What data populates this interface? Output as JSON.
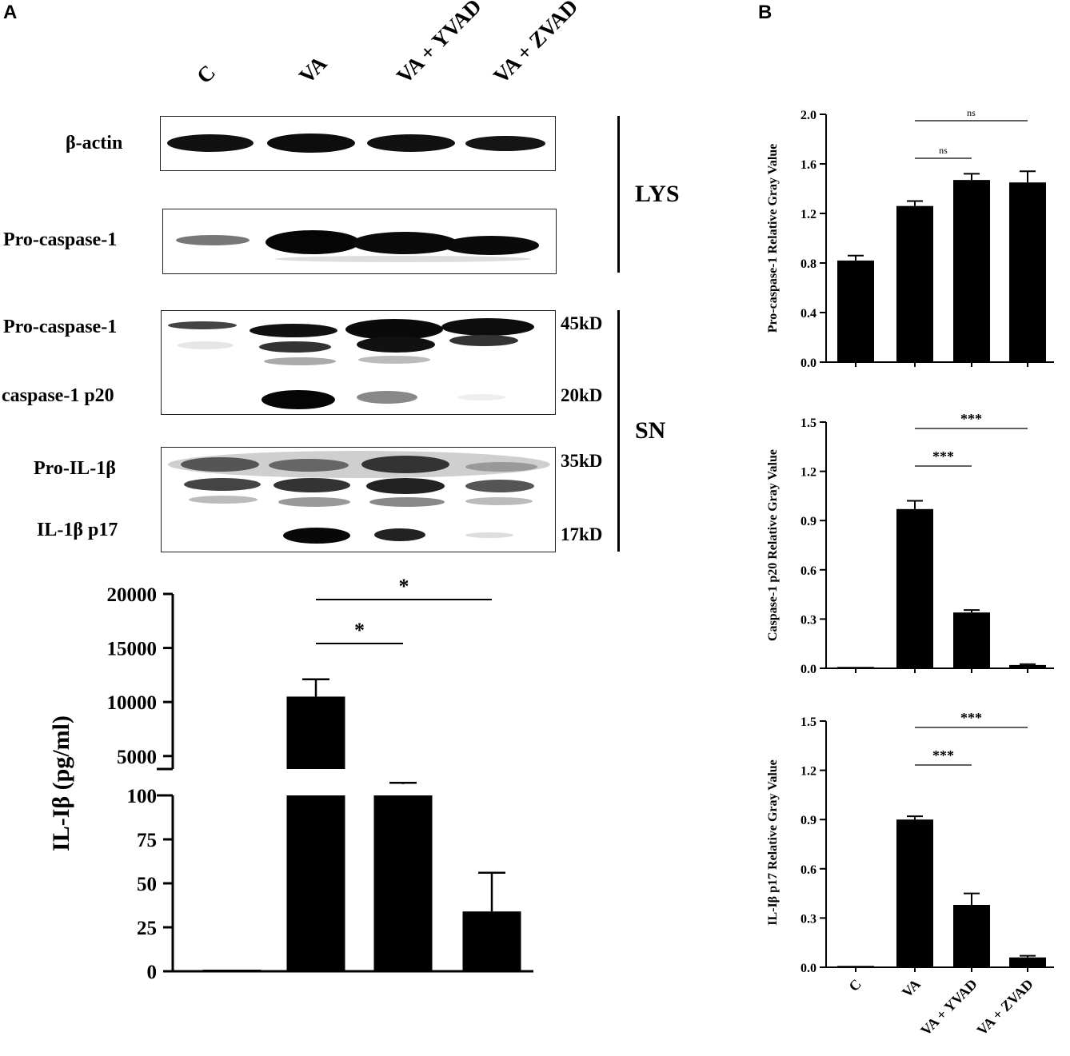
{
  "panel_a": {
    "letter": "A",
    "lanes": [
      "C",
      "VA",
      "VA + YVAD",
      "VA + ZVAD"
    ],
    "blots": {
      "beta_actin": "β-actin",
      "lys_pro_caspase": "Pro-caspase-1",
      "sn_pro_caspase": "Pro-caspase-1",
      "caspase_p20": "caspase-1 p20",
      "pro_il1b": "Pro-IL-1β",
      "il1b_p17": "IL-1β p17"
    },
    "markers": [
      "45kD",
      "20kD",
      "35kD",
      "17kD"
    ],
    "groups": {
      "lys": "LYS",
      "sn": "SN"
    }
  },
  "panel_b": {
    "letter": "B"
  },
  "colors": {
    "bar": "#000000",
    "background": "#ffffff"
  },
  "chart_data": [
    {
      "type": "bar",
      "id": "il1b_elisa",
      "categories": [
        "C",
        "VA",
        "VA + YVAD",
        "VA + ZVAD"
      ],
      "values": [
        0,
        10500,
        2400,
        34
      ],
      "errors": [
        0,
        1600,
        120,
        22
      ],
      "ylabel": "IL-Iβ (pg/ml)",
      "y_axis_broken": true,
      "ylim_lower": [
        0,
        100
      ],
      "yticks_lower": [
        "0",
        "25",
        "50",
        "75",
        "100"
      ],
      "ylim_upper": [
        3800,
        20000
      ],
      "yticks_upper": [
        "5000",
        "10000",
        "15000",
        "20000"
      ],
      "significance": [
        {
          "from": "VA",
          "to": "VA + YVAD",
          "label": "*"
        },
        {
          "from": "VA",
          "to": "VA + ZVAD",
          "label": "*"
        }
      ],
      "grid": false
    },
    {
      "type": "bar",
      "id": "pro_caspase",
      "categories": [
        "C",
        "VA",
        "VA + YVAD",
        "VA + ZVAD"
      ],
      "values": [
        0.82,
        1.26,
        1.47,
        1.45
      ],
      "errors": [
        0.04,
        0.04,
        0.05,
        0.09
      ],
      "ylabel": "Pro-caspase-1 Relative Gray Value",
      "ylim": [
        0,
        2.0
      ],
      "yticks": [
        "0.0",
        "0.4",
        "0.8",
        "1.2",
        "1.6",
        "2.0"
      ],
      "significance": [
        {
          "from": "VA",
          "to": "VA + YVAD",
          "label": "ns"
        },
        {
          "from": "VA",
          "to": "VA + ZVAD",
          "label": "ns"
        }
      ],
      "grid": false
    },
    {
      "type": "bar",
      "id": "caspase_p20",
      "categories": [
        "C",
        "VA",
        "VA + YVAD",
        "VA + ZVAD"
      ],
      "values": [
        0.0,
        0.97,
        0.34,
        0.02
      ],
      "errors": [
        0,
        0.05,
        0.015,
        0.005
      ],
      "ylabel": "Caspase-1 p20 Relative Gray Value",
      "ylim": [
        0,
        1.5
      ],
      "yticks": [
        "0.0",
        "0.3",
        "0.6",
        "0.9",
        "1.2",
        "1.5"
      ],
      "significance": [
        {
          "from": "VA",
          "to": "VA + YVAD",
          "label": "***"
        },
        {
          "from": "VA",
          "to": "VA + ZVAD",
          "label": "***"
        }
      ],
      "grid": false
    },
    {
      "type": "bar",
      "id": "il1b_p17",
      "categories": [
        "C",
        "VA",
        "VA + YVAD",
        "VA + ZVAD"
      ],
      "values": [
        0.0,
        0.9,
        0.38,
        0.06
      ],
      "errors": [
        0,
        0.02,
        0.07,
        0.01
      ],
      "ylabel": "IL-Iβ p17 Relative Gray Value",
      "ylim": [
        0,
        1.5
      ],
      "yticks": [
        "0.0",
        "0.3",
        "0.6",
        "0.9",
        "1.2",
        "1.5"
      ],
      "significance": [
        {
          "from": "VA",
          "to": "VA + YVAD",
          "label": "***"
        },
        {
          "from": "VA",
          "to": "VA + ZVAD",
          "label": "***"
        }
      ],
      "show_xticklabels": true,
      "grid": false
    }
  ]
}
